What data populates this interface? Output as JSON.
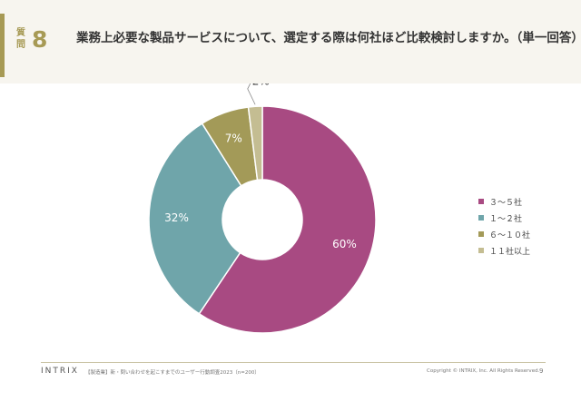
{
  "question": {
    "label": "質問",
    "number": "8",
    "title": "業務上必要な製品サービスについて、選定する際は何社ほど比較検討しますか。（単一回答）"
  },
  "chart_data": {
    "type": "pie",
    "categories": [
      "３～５社",
      "１～２社",
      "６～１０社",
      "１１社以上"
    ],
    "values": [
      60,
      32,
      7,
      2
    ],
    "data_labels": [
      "60%",
      "32%",
      "7%",
      "2%"
    ],
    "colors": [
      "#a84a82",
      "#6fa5aa",
      "#a39a58",
      "#c4bd92"
    ],
    "donut": true,
    "legend": "right"
  },
  "footer": {
    "logo": "INTRIX",
    "note": "【製造業】新・問い合わせを起こすまでのユーザー行動調査2023（n=200）",
    "copyright": "Copyright © INTRIX, Inc. All Rights Reserved.",
    "page": "9"
  }
}
